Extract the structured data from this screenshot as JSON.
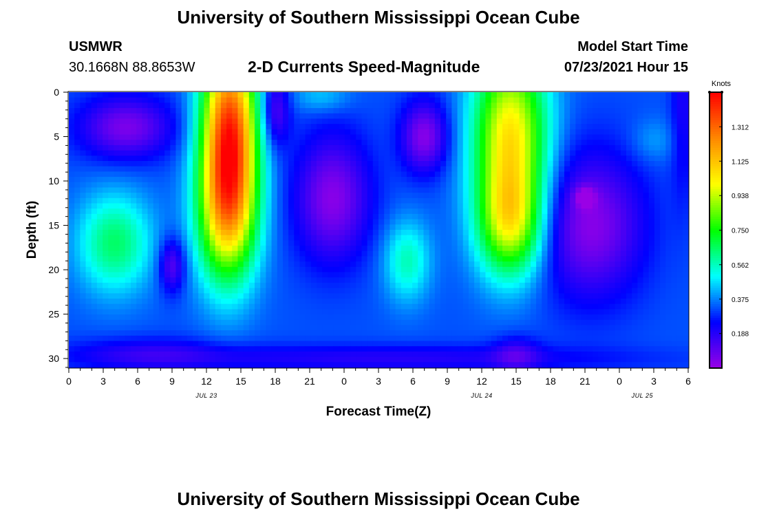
{
  "page": {
    "title_top": "University of Southern Mississippi Ocean Cube",
    "title_bottom": "University of Southern Mississippi Ocean Cube"
  },
  "header": {
    "station": "USMWR",
    "coords": "30.1668N  88.8653W",
    "plot_title": "2-D Currents Speed-Magnitude",
    "model_label": "Model Start Time",
    "model_time": "07/23/2021 Hour 15"
  },
  "colorbar": {
    "unit": "Knots",
    "ticks": [
      "0.188",
      "0.375",
      "0.562",
      "0.750",
      "0.938",
      "1.125",
      "1.312"
    ],
    "vmax": 1.5,
    "stops": [
      "#9a00e6",
      "#0000ff",
      "#00ffff",
      "#00ff00",
      "#ffff00",
      "#ff8800",
      "#ff0000"
    ]
  },
  "chart_data": {
    "type": "heatmap",
    "title": "2-D Currents Speed-Magnitude",
    "xlabel": "Forecast Time(Z)",
    "ylabel": "Depth (ft)",
    "x_tick_labels": [
      "0",
      "3",
      "6",
      "9",
      "12",
      "15",
      "18",
      "21",
      "0",
      "3",
      "6",
      "9",
      "12",
      "15",
      "18",
      "21",
      "0",
      "3",
      "6"
    ],
    "date_labels": [
      "JUL 23",
      "JUL 24",
      "JUL 25"
    ],
    "y_tick_labels": [
      "0",
      "5",
      "10",
      "15",
      "20",
      "25",
      "30"
    ],
    "ylim": [
      31,
      0
    ],
    "x_range_hours": [
      0,
      54
    ],
    "value_unit": "Knots",
    "value_range": [
      0,
      1.5
    ],
    "features": [
      {
        "label": "jet-1",
        "hour": 13.8,
        "depth": 5,
        "speed": 1.28
      },
      {
        "label": "jet-1-lower",
        "hour": 13.5,
        "depth": 15,
        "speed": 0.95
      },
      {
        "label": "jet-2",
        "hour": 38.5,
        "depth": 5,
        "speed": 0.98
      },
      {
        "label": "jet-2-lower",
        "hour": 38.5,
        "depth": 15,
        "speed": 0.9
      },
      {
        "label": "left-lobe",
        "hour": 4,
        "depth": 17,
        "speed": 0.66
      },
      {
        "label": "mid-lobe",
        "hour": 30,
        "depth": 19,
        "speed": 0.56
      },
      {
        "label": "top-green",
        "hour": 23,
        "depth": 1,
        "speed": 0.45
      },
      {
        "label": "right-green",
        "hour": 51,
        "depth": 5.5,
        "speed": 0.36
      },
      {
        "label": "low-spot",
        "hour": 45,
        "depth": 11.5,
        "speed": 0.02
      },
      {
        "label": "low-spot-2",
        "hour": 39,
        "depth": 29.5,
        "speed": 0.06
      }
    ]
  }
}
